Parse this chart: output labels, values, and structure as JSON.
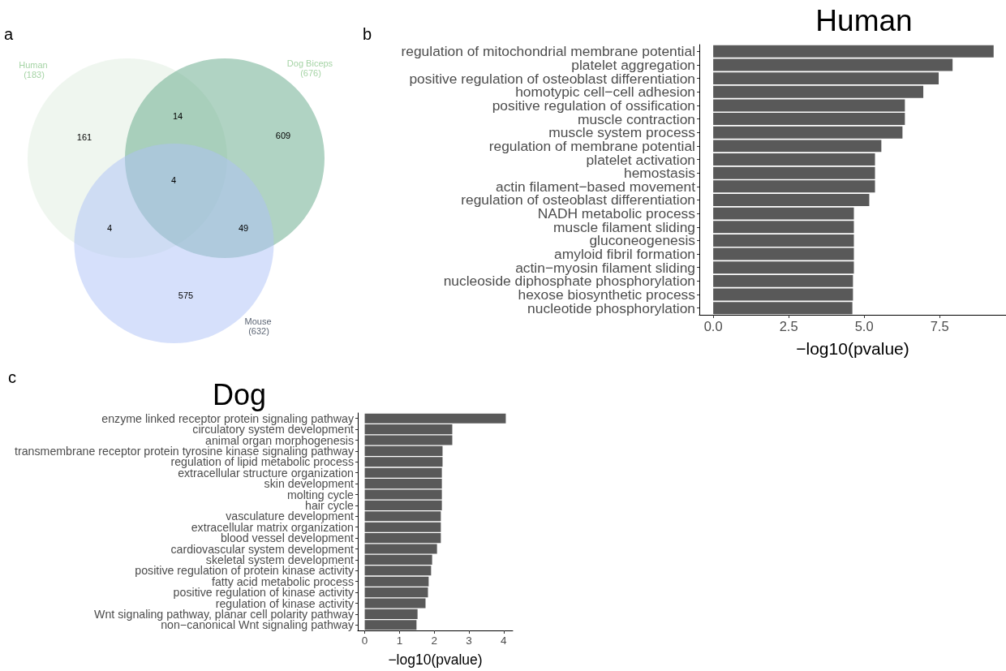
{
  "chart_data": [
    {
      "type": "other",
      "categories": [
        "Human",
        "Dog Biceps",
        "Mouse"
      ],
      "value_labels": [
        "(183)",
        "(676)",
        "(632)"
      ],
      "colors": [
        "#eff6ef",
        "#b0d3c3",
        "#d6e0fb"
      ],
      "annotations": [
        "a",
        "161",
        "14",
        "609",
        "4",
        "4",
        "49",
        "575"
      ]
    },
    {
      "type": "bar",
      "orientation": "horizontal",
      "title": "Human",
      "xlabel": "−log10(pvalue)",
      "categories": [
        "regulation of mitochondrial membrane potential",
        "platelet aggregation",
        "positive regulation of osteoblast differentiation",
        "homotypic cell−cell adhesion",
        "positive regulation of ossification",
        "muscle contraction",
        "muscle system process",
        "regulation of membrane potential",
        "platelet activation",
        "hemostasis",
        "actin filament−based movement",
        "regulation of osteoblast differentiation",
        "NADH metabolic process",
        "muscle filament sliding",
        "gluconeogenesis",
        "amyloid fibril formation",
        "actin−myosin filament sliding",
        "nucleoside diphosphate phosphorylation",
        "hexose biosynthetic process",
        "nucleotide phosphorylation"
      ],
      "values": [
        9.29,
        7.93,
        7.47,
        6.96,
        6.35,
        6.35,
        6.27,
        5.57,
        5.36,
        5.36,
        5.36,
        5.17,
        4.66,
        4.66,
        4.66,
        4.66,
        4.66,
        4.63,
        4.63,
        4.61
      ],
      "color": "#595959",
      "xlim": [
        -0.46,
        9.7
      ],
      "xticks": [
        {
          "value": 0,
          "label": "0.0"
        },
        2.5,
        {
          "value": 5,
          "label": "5.0"
        },
        7.5
      ],
      "grid": false,
      "annotations": [
        "b"
      ]
    },
    {
      "type": "bar",
      "orientation": "horizontal",
      "title": "Dog",
      "xlabel": "−log10(pvalue)",
      "categories": [
        "enzyme linked receptor protein signaling pathway",
        "circulatory system development",
        "animal organ morphogenesis",
        "transmembrane receptor protein tyrosine kinase signaling pathway",
        "regulation of lipid metabolic process",
        "extracellular structure organization",
        "skin development",
        "molting cycle",
        "hair cycle",
        "vasculature development",
        "extracellular matrix organization",
        "blood vessel development",
        "cardiovascular system development",
        "skeletal system development",
        "positive regulation of protein kinase activity",
        "fatty acid metabolic process",
        "positive regulation of kinase activity",
        "regulation of kinase activity",
        "Wnt signaling pathway, planar cell polarity pathway",
        "non−canonical Wnt signaling pathway"
      ],
      "values": [
        4.06,
        2.52,
        2.52,
        2.24,
        2.24,
        2.22,
        2.22,
        2.22,
        2.22,
        2.19,
        2.19,
        2.19,
        2.08,
        1.94,
        1.91,
        1.84,
        1.82,
        1.75,
        1.52,
        1.49
      ],
      "color": "#595959",
      "xlim": [
        -0.2,
        4.26
      ],
      "xticks": [
        0,
        1,
        2,
        3,
        4
      ],
      "grid": false,
      "annotations": [
        "c"
      ]
    }
  ]
}
